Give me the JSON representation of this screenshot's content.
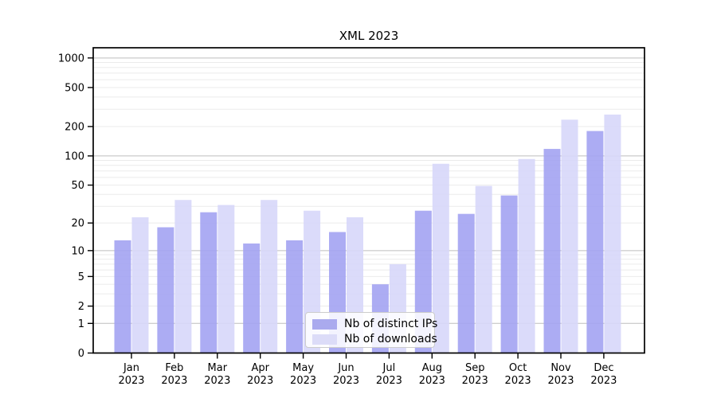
{
  "title": "XML 2023",
  "chart_data": {
    "type": "bar",
    "title": "XML 2023",
    "categories": [
      "Jan",
      "Feb",
      "Mar",
      "Apr",
      "May",
      "Jun",
      "Jul",
      "Aug",
      "Sep",
      "Oct",
      "Nov",
      "Dec"
    ],
    "category_year": "2023",
    "series": [
      {
        "name": "Nb of distinct IPs",
        "color": "#a3a3f2",
        "legend_color": "#aaaaee",
        "values": [
          13,
          18,
          26,
          12,
          13,
          16,
          4,
          27,
          25,
          39,
          118,
          180
        ]
      },
      {
        "name": "Nb of downloads",
        "color": "#d7d7f9",
        "legend_color": "#dcdcf8",
        "values": [
          23,
          35,
          31,
          35,
          27,
          23,
          7,
          83,
          49,
          93,
          235,
          265
        ]
      }
    ],
    "y_ticks": [
      0,
      1,
      2,
      5,
      10,
      20,
      50,
      100,
      200,
      500,
      1000
    ],
    "y_scale": "symlog (y = log10(1+v))",
    "ylim": [
      0,
      1270
    ],
    "grid": {
      "orientation": "horizontal",
      "major_color": "#bdbdbd",
      "minor_color": "#ebebeb"
    },
    "legend_position": "lower center",
    "axis_color": "#000000"
  }
}
